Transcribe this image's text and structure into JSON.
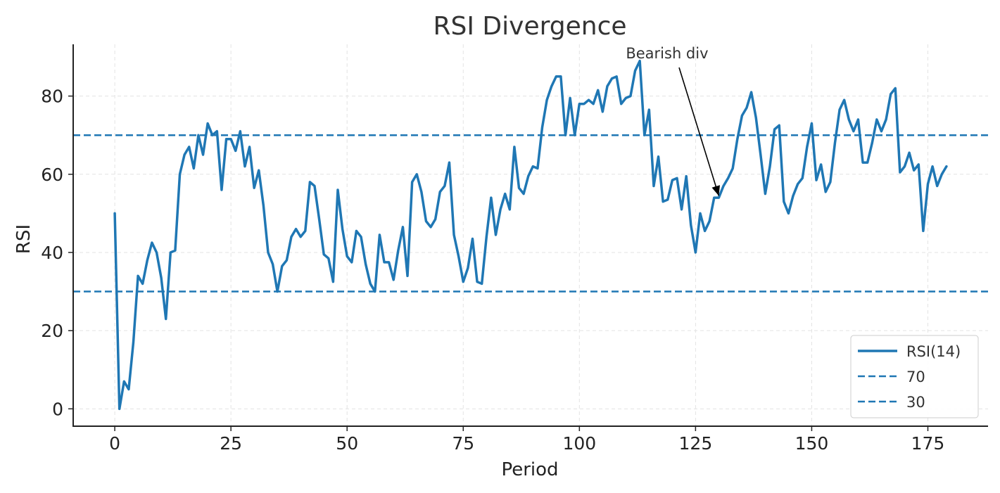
{
  "chart_data": {
    "type": "line",
    "title": "RSI Divergence",
    "xlabel": "Period",
    "ylabel": "RSI",
    "xlim": [
      -8.95,
      187.95
    ],
    "ylim": [
      -4.44,
      93.24
    ],
    "x_ticks": [
      0,
      25,
      50,
      75,
      100,
      125,
      150,
      175
    ],
    "y_ticks": [
      0,
      20,
      40,
      60,
      80
    ],
    "grid": true,
    "legend_position": "lower-right",
    "series": [
      {
        "name": "RSI(14)",
        "color": "#1f77b4",
        "style": "solid",
        "x_start": 0,
        "values": [
          50,
          0,
          7,
          5,
          17,
          34,
          32,
          38,
          42.5,
          40,
          33.5,
          23,
          40,
          40.5,
          60,
          65,
          67,
          61.5,
          70,
          65,
          73,
          70,
          71,
          56,
          69,
          69,
          66,
          71,
          62,
          67,
          56.5,
          61,
          52,
          40,
          37,
          30,
          36.5,
          38,
          44,
          46,
          44,
          45.5,
          58,
          57,
          48.5,
          39.5,
          38.5,
          32.5,
          56,
          46,
          39,
          37.5,
          45.5,
          44,
          37,
          32,
          30,
          44.5,
          37.5,
          37.5,
          33,
          40.5,
          46.5,
          34,
          58,
          60,
          55.5,
          48,
          46.5,
          48.5,
          55.5,
          57,
          63,
          44.5,
          39,
          32.5,
          36,
          43.5,
          32.5,
          32,
          44,
          54,
          44.5,
          51,
          55,
          51,
          67,
          56.5,
          55,
          59.5,
          62,
          61.5,
          72,
          79,
          82.5,
          85,
          85,
          70,
          79.5,
          70,
          78,
          78,
          79,
          78,
          81.5,
          76,
          82.5,
          84.5,
          85,
          78,
          79.5,
          80,
          86.5,
          89,
          70,
          76.5,
          57,
          64.5,
          53,
          53.5,
          58.5,
          59,
          51,
          59.5,
          47,
          40,
          50,
          45.5,
          48,
          54,
          54,
          57,
          59,
          61.5,
          69,
          75,
          77,
          81,
          74.5,
          65,
          55,
          62,
          71.5,
          72.5,
          53,
          50,
          54.5,
          57.5,
          59,
          67,
          73,
          58.5,
          62.5,
          55.5,
          58,
          68,
          76.5,
          79,
          74,
          71,
          74,
          63,
          63,
          68,
          74,
          71,
          74,
          80.5,
          82,
          60.5,
          62,
          65.5,
          61,
          62.5,
          45.5,
          57.5,
          62,
          57,
          60,
          62
        ]
      },
      {
        "name": "70",
        "color": "#1f77b4",
        "style": "dashed",
        "value": 70
      },
      {
        "name": "30",
        "color": "#1f77b4",
        "style": "dashed",
        "value": 30
      }
    ],
    "annotation": {
      "text": "Bearish div",
      "text_x": 110,
      "text_y": 90,
      "point_x": 130,
      "point_y": 54.5
    }
  }
}
